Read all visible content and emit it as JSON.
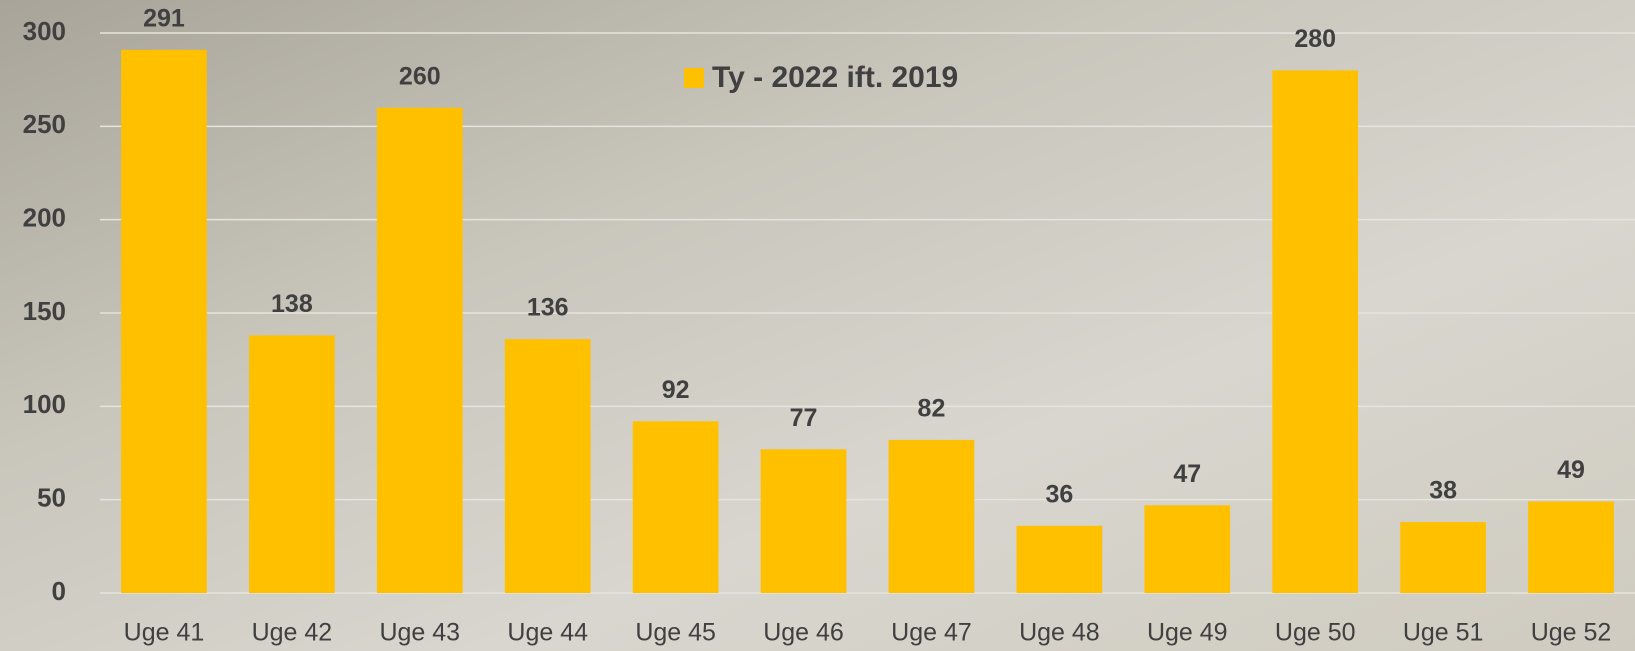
{
  "chart_data": {
    "type": "bar",
    "categories": [
      "Uge 41",
      "Uge 42",
      "Uge 43",
      "Uge 44",
      "Uge 45",
      "Uge 46",
      "Uge 47",
      "Uge 48",
      "Uge 49",
      "Uge 50",
      "Uge 51",
      "Uge 52"
    ],
    "series": [
      {
        "name": "Ty - 2022 ift. 2019",
        "color": "#ffc000",
        "values": [
          291,
          138,
          260,
          136,
          92,
          77,
          82,
          36,
          47,
          280,
          38,
          49
        ]
      }
    ],
    "ylim": [
      0,
      300
    ],
    "yticks": [
      0,
      50,
      100,
      150,
      200,
      250,
      300
    ],
    "grid": true
  }
}
